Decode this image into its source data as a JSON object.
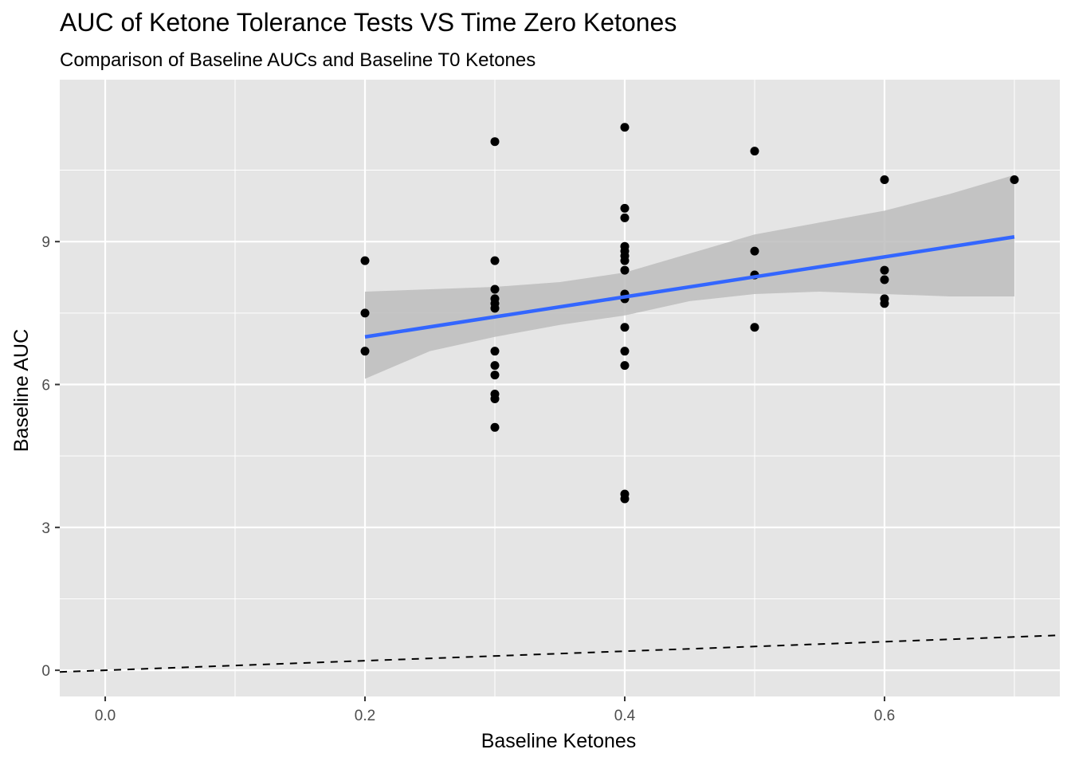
{
  "chart_data": {
    "type": "scatter",
    "title": "AUC of Ketone Tolerance Tests VS Time Zero Ketones",
    "subtitle": "Comparison of Baseline AUCs and Baseline T0 Ketones",
    "xlabel": "Baseline Ketones",
    "ylabel": "Baseline AUC",
    "xlim": [
      -0.035,
      0.735
    ],
    "ylim": [
      -0.55,
      12.4
    ],
    "x_ticks": [
      0.0,
      0.2,
      0.4,
      0.6
    ],
    "x_tick_labels": [
      "0.0",
      "0.2",
      "0.4",
      "0.6"
    ],
    "y_ticks": [
      0,
      3,
      6,
      9
    ],
    "y_tick_labels": [
      "0",
      "3",
      "6",
      "9"
    ],
    "grid": true,
    "points": [
      {
        "x": 0.2,
        "y": 8.6
      },
      {
        "x": 0.2,
        "y": 7.5
      },
      {
        "x": 0.2,
        "y": 6.7
      },
      {
        "x": 0.3,
        "y": 11.1
      },
      {
        "x": 0.3,
        "y": 8.6
      },
      {
        "x": 0.3,
        "y": 8.0
      },
      {
        "x": 0.3,
        "y": 7.8
      },
      {
        "x": 0.3,
        "y": 7.7
      },
      {
        "x": 0.3,
        "y": 7.6
      },
      {
        "x": 0.3,
        "y": 6.7
      },
      {
        "x": 0.3,
        "y": 6.4
      },
      {
        "x": 0.3,
        "y": 6.2
      },
      {
        "x": 0.3,
        "y": 5.8
      },
      {
        "x": 0.3,
        "y": 5.7
      },
      {
        "x": 0.3,
        "y": 5.1
      },
      {
        "x": 0.4,
        "y": 11.4
      },
      {
        "x": 0.4,
        "y": 9.7
      },
      {
        "x": 0.4,
        "y": 9.5
      },
      {
        "x": 0.4,
        "y": 8.9
      },
      {
        "x": 0.4,
        "y": 8.8
      },
      {
        "x": 0.4,
        "y": 8.7
      },
      {
        "x": 0.4,
        "y": 8.6
      },
      {
        "x": 0.4,
        "y": 8.4
      },
      {
        "x": 0.4,
        "y": 7.9
      },
      {
        "x": 0.4,
        "y": 7.8
      },
      {
        "x": 0.4,
        "y": 7.2
      },
      {
        "x": 0.4,
        "y": 6.7
      },
      {
        "x": 0.4,
        "y": 6.4
      },
      {
        "x": 0.4,
        "y": 3.7
      },
      {
        "x": 0.4,
        "y": 3.6
      },
      {
        "x": 0.5,
        "y": 10.9
      },
      {
        "x": 0.5,
        "y": 8.8
      },
      {
        "x": 0.5,
        "y": 8.3
      },
      {
        "x": 0.5,
        "y": 7.2
      },
      {
        "x": 0.6,
        "y": 10.3
      },
      {
        "x": 0.6,
        "y": 8.4
      },
      {
        "x": 0.6,
        "y": 8.2
      },
      {
        "x": 0.6,
        "y": 7.8
      },
      {
        "x": 0.6,
        "y": 7.7
      },
      {
        "x": 0.7,
        "y": 10.3
      }
    ],
    "trend_line": {
      "method": "linear fit",
      "x": [
        0.2,
        0.7
      ],
      "y": [
        7.0,
        9.1
      ]
    },
    "confidence_band": {
      "x": [
        0.2,
        0.25,
        0.3,
        0.35,
        0.4,
        0.45,
        0.5,
        0.55,
        0.6,
        0.65,
        0.7
      ],
      "upper": [
        7.95,
        8.0,
        8.05,
        8.15,
        8.35,
        8.75,
        9.15,
        9.4,
        9.65,
        10.0,
        10.4
      ],
      "lower": [
        6.12,
        6.7,
        7.0,
        7.25,
        7.45,
        7.75,
        7.9,
        7.95,
        7.9,
        7.85,
        7.85
      ]
    },
    "reference_line": {
      "style": "dashed",
      "slope": 1,
      "intercept": 0
    },
    "colors": {
      "panel": "#e5e5e5",
      "grid": "#ffffff",
      "point": "#000000",
      "trend": "#3366ff",
      "band": "#bdbdbd"
    }
  }
}
